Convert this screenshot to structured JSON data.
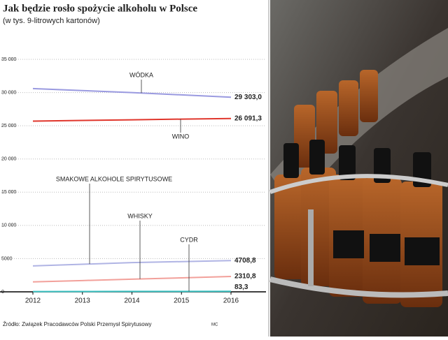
{
  "chart_data": {
    "type": "line",
    "title": "Jak będzie rosło spożycie alkoholu w Polsce",
    "subtitle": "(w tys. 9-litrowych kartonów)",
    "x": [
      2012,
      2013,
      2014,
      2015,
      2016
    ],
    "xlim": [
      2012,
      2016
    ],
    "xticks": [
      2012,
      2013,
      2014,
      2015,
      2016
    ],
    "ylim": [
      0,
      35000
    ],
    "yticks": [
      0,
      {
        "value": 5000,
        "label": "5000"
      },
      {
        "value": 10000,
        "label": "10 000"
      },
      {
        "value": 15000,
        "label": "15 000"
      },
      {
        "value": 20000,
        "label": "20 000"
      },
      {
        "value": 25000,
        "label": "25 000"
      },
      {
        "value": 30000,
        "label": "30 000"
      },
      {
        "value": 35000,
        "label": "35 000"
      }
    ],
    "grid": true,
    "series": [
      {
        "name": "WÓDKA",
        "color": "#9a9ae0",
        "values": [
          30600,
          30300,
          30000,
          29650,
          29303.0
        ],
        "value_labels": [
          null,
          null,
          null,
          null,
          "29 303,0"
        ]
      },
      {
        "name": "WINO",
        "color": "#e0362c",
        "values": [
          25700,
          25800,
          25900,
          26000,
          26091.3
        ],
        "value_labels": [
          null,
          null,
          null,
          null,
          "26 091,3"
        ]
      },
      {
        "name": "SMAKOWE ALKOHOLE SPIRYTUSOWE",
        "color": "#b0b4e4",
        "values": [
          3900,
          4150,
          4400,
          4550,
          4708.8
        ],
        "value_labels": [
          null,
          null,
          null,
          null,
          "4708,8"
        ]
      },
      {
        "name": "WHISKY",
        "color": "#f2a09a",
        "values": [
          1500,
          1700,
          1900,
          2100,
          2310.8
        ],
        "value_labels": [
          null,
          null,
          null,
          null,
          "2310,8"
        ]
      },
      {
        "name": "CYDR",
        "color": "#3cc4c4",
        "values": [
          40,
          50,
          60,
          70,
          83.3
        ],
        "value_labels": [
          null,
          null,
          null,
          null,
          "83,3"
        ]
      }
    ],
    "source": "Źródło: Związek Pracodawców Polski Przemysł Spirytusowy",
    "credit": "MC"
  }
}
